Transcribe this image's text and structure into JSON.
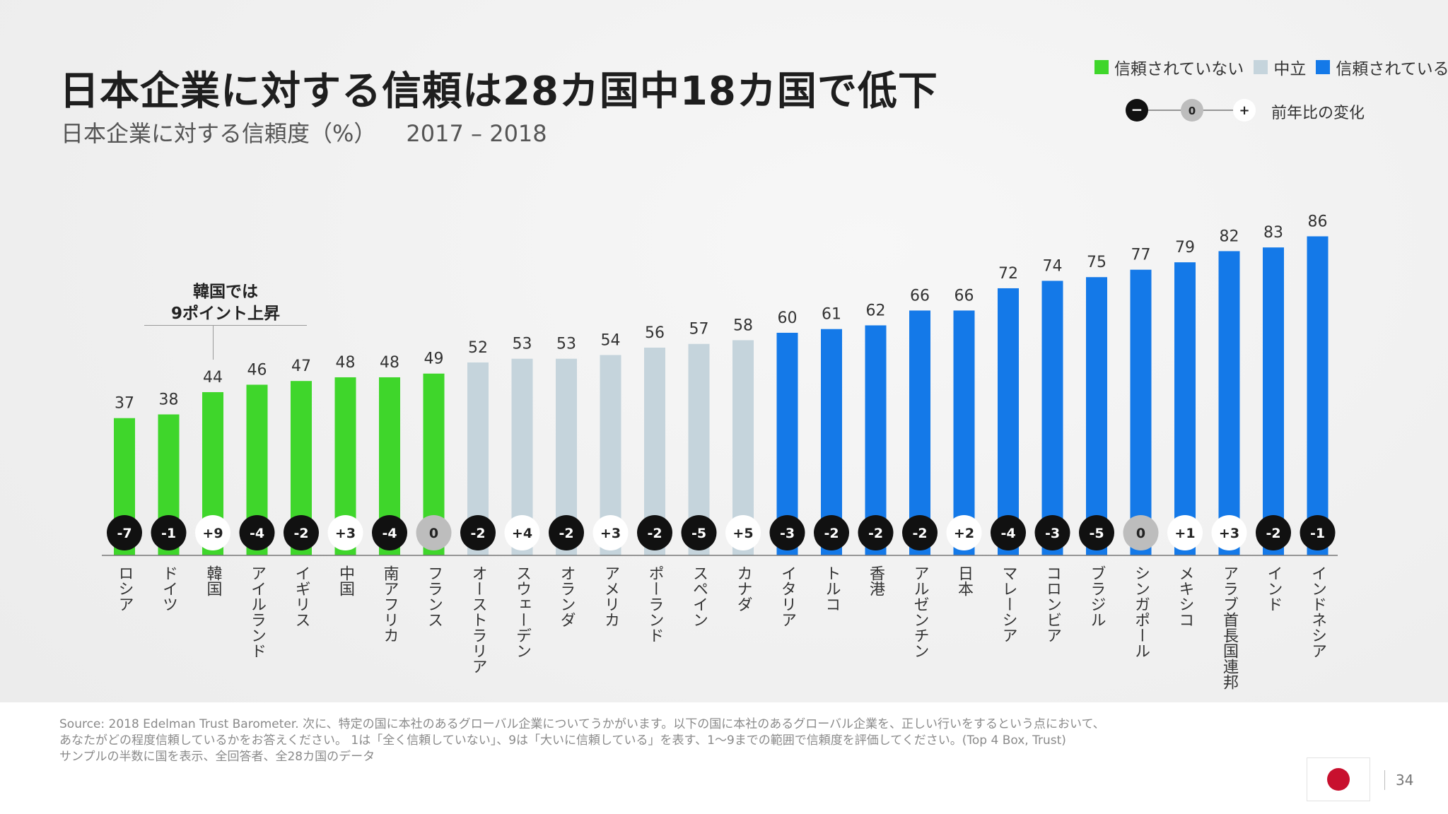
{
  "title": "日本企業に対する信頼は28カ国中18カ国で低下",
  "subtitle": "日本企業に対する信頼度（%）",
  "subtitle_years": "2017 – 2018",
  "legend": {
    "items": [
      {
        "label": "信頼されていない",
        "color": "#3fd62b"
      },
      {
        "label": "中立",
        "color": "#c5d4dc"
      },
      {
        "label": "信頼されている",
        "color": "#1479e8"
      }
    ],
    "change_minus": "−",
    "change_zero": "0",
    "change_plus": "+",
    "change_label": "前年比の変化"
  },
  "callout": {
    "line1": "韓国では",
    "line2": "9ポイント上昇"
  },
  "chart_data": {
    "type": "bar",
    "categories": [
      "ロシア",
      "ドイツ",
      "韓国",
      "アイルランド",
      "イギリス",
      "中国",
      "南アフリカ",
      "フランス",
      "オーストラリア",
      "スウェーデン",
      "オランダ",
      "アメリカ",
      "ポーランド",
      "スペイン",
      "カナダ",
      "イタリア",
      "トルコ",
      "香港",
      "アルゼンチン",
      "日本",
      "マレーシア",
      "コロンビア",
      "ブラジル",
      "シンガポール",
      "メキシコ",
      "アラブ首長国連邦",
      "インド",
      "インドネシア"
    ],
    "values": [
      37,
      38,
      44,
      46,
      47,
      48,
      48,
      49,
      52,
      53,
      53,
      54,
      56,
      57,
      58,
      60,
      61,
      62,
      66,
      66,
      72,
      74,
      75,
      77,
      79,
      82,
      83,
      86
    ],
    "groups": [
      "distrust",
      "distrust",
      "distrust",
      "distrust",
      "distrust",
      "distrust",
      "distrust",
      "distrust",
      "neutral",
      "neutral",
      "neutral",
      "neutral",
      "neutral",
      "neutral",
      "neutral",
      "trust",
      "trust",
      "trust",
      "trust",
      "trust",
      "trust",
      "trust",
      "trust",
      "trust",
      "trust",
      "trust",
      "trust",
      "trust"
    ],
    "change": [
      "-7",
      "-1",
      "+9",
      "-4",
      "-2",
      "+3",
      "-4",
      "0",
      "-2",
      "+4",
      "-2",
      "+3",
      "-2",
      "-5",
      "+5",
      "-3",
      "-2",
      "-2",
      "-2",
      "+2",
      "-4",
      "-3",
      "-5",
      "0",
      "+1",
      "+3",
      "-2",
      "-1"
    ],
    "colors": {
      "distrust": "#3fd62b",
      "neutral": "#c5d4dc",
      "trust": "#1479e8"
    },
    "change_colors": {
      "negative": "#111111",
      "positive": "#ffffff",
      "zero": "#bdbdbd"
    },
    "ylim": [
      0,
      100
    ],
    "grid": false
  },
  "source_lines": [
    "Source: 2018 Edelman Trust Barometer. 次に、特定の国に本社のあるグローバル企業についてうかがいます。以下の国に本社のあるグローバル企業を、正しい行いをするという点において、",
    "あなたがどの程度信頼しているかをお答えください。 1は「全く信頼していない」、9は「大いに信頼している」を表す、1〜9までの範囲で信頼度を評価してください。(Top 4 Box, Trust)",
    "サンプルの半数に国を表示、全回答者、全28カ国のデータ"
  ],
  "page_number": "34"
}
